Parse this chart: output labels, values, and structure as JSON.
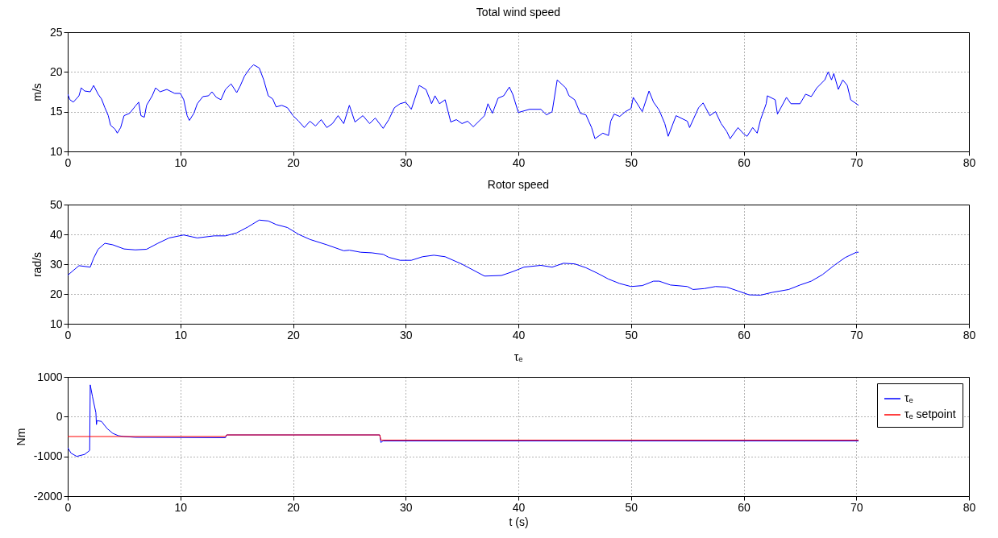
{
  "chart_data": [
    {
      "type": "line",
      "title": "Total wind speed",
      "ylabel": "m/s",
      "xlim": [
        0,
        80
      ],
      "xticks": [
        0,
        10,
        20,
        30,
        40,
        50,
        60,
        70,
        80
      ],
      "ylim": [
        10,
        25
      ],
      "yticks": [
        10,
        15,
        20,
        25
      ],
      "grid": true,
      "series": [
        {
          "color": "#0000ff",
          "x": [
            0,
            0.2,
            0.5,
            1.0,
            1.2,
            1.5,
            2.0,
            2.3,
            2.7,
            3.0,
            3.3,
            3.6,
            3.8,
            4.2,
            4.4,
            4.7,
            5.0,
            5.5,
            6.0,
            6.3,
            6.5,
            6.8,
            7.0,
            7.5,
            7.8,
            8.2,
            8.8,
            9.5,
            10.0,
            10.3,
            10.6,
            10.8,
            11.2,
            11.5,
            12.0,
            12.5,
            12.8,
            13.2,
            13.6,
            14.0,
            14.5,
            15.0,
            15.3,
            15.7,
            16.2,
            16.5,
            17.0,
            17.4,
            17.8,
            18.2,
            18.5,
            19.0,
            19.5,
            20.0,
            20.5,
            21.0,
            21.5,
            22.0,
            22.5,
            23.0,
            23.5,
            24.0,
            24.5,
            25.0,
            25.5,
            26.2,
            26.8,
            27.3,
            28.0,
            28.5,
            29.0,
            29.5,
            30.0,
            30.5,
            31.2,
            31.8,
            32.3,
            32.6,
            33.0,
            33.5,
            34.0,
            34.5,
            35.0,
            35.5,
            36.0,
            36.5,
            37.0,
            37.3,
            37.7,
            38.2,
            38.7,
            39.2,
            39.5,
            40.0,
            41.0,
            42.0,
            42.5,
            43.0,
            43.45,
            44.2,
            44.5,
            45.0,
            45.5,
            46.0,
            46.5,
            46.8,
            47.5,
            48.0,
            48.2,
            48.5,
            49.0,
            49.5,
            50.0,
            50.2,
            51.0,
            51.6,
            52.0,
            52.5,
            53.0,
            53.3,
            54.0,
            55.0,
            55.2,
            56.0,
            56.4,
            57.0,
            57.5,
            58.0,
            58.5,
            58.8,
            59.5,
            60.0,
            60.3,
            60.8,
            61.2,
            61.5,
            62.0,
            62.1,
            62.8,
            63.0,
            63.8,
            64.2,
            65.0,
            65.5,
            66.0,
            66.5,
            67.2,
            67.5,
            67.8,
            68.0,
            68.4,
            68.8,
            69.2,
            69.5,
            70.0,
            70.2
          ],
          "values": [
            17.2,
            16.5,
            16.2,
            17.0,
            18.0,
            17.6,
            17.5,
            18.3,
            17.2,
            16.6,
            15.5,
            14.5,
            13.3,
            12.8,
            12.3,
            13.0,
            14.5,
            14.8,
            15.7,
            16.2,
            14.5,
            14.3,
            15.8,
            17.0,
            18.0,
            17.5,
            17.8,
            17.3,
            17.3,
            16.5,
            14.5,
            13.9,
            14.8,
            16.0,
            16.9,
            17.0,
            17.5,
            16.8,
            16.5,
            17.8,
            18.5,
            17.4,
            18.2,
            19.5,
            20.5,
            20.9,
            20.5,
            19.0,
            17.0,
            16.6,
            15.6,
            15.8,
            15.5,
            14.5,
            13.8,
            13.0,
            13.8,
            13.2,
            14.0,
            13.0,
            13.5,
            14.5,
            13.5,
            15.8,
            13.7,
            14.5,
            13.5,
            14.2,
            12.9,
            14.0,
            15.5,
            16.0,
            16.2,
            15.3,
            18.3,
            17.8,
            16.0,
            17.0,
            16.0,
            16.5,
            13.7,
            14.0,
            13.5,
            13.8,
            13.1,
            13.8,
            14.5,
            16.0,
            14.8,
            16.7,
            17.0,
            18.1,
            17.2,
            14.9,
            15.3,
            15.3,
            14.6,
            15.0,
            19.0,
            18.0,
            17.0,
            16.5,
            14.8,
            14.6,
            13.0,
            11.6,
            12.3,
            12.0,
            13.8,
            14.7,
            14.4,
            15.0,
            15.4,
            16.8,
            15.0,
            17.6,
            16.2,
            15.2,
            13.5,
            11.9,
            14.5,
            13.8,
            13.0,
            15.5,
            16.1,
            14.5,
            15.0,
            13.5,
            12.5,
            11.6,
            13.0,
            12.2,
            11.9,
            13.0,
            12.3,
            14.0,
            16.0,
            17.0,
            16.5,
            14.7,
            16.8,
            16.0,
            16.0,
            17.2,
            16.9,
            18.0,
            19.0,
            20.0,
            19.0,
            19.8,
            17.8,
            19.0,
            18.3,
            16.5,
            16.0,
            15.8
          ]
        }
      ]
    },
    {
      "type": "line",
      "title": "Rotor speed",
      "ylabel": "rad/s",
      "xlim": [
        0,
        80
      ],
      "xticks": [
        0,
        10,
        20,
        30,
        40,
        50,
        60,
        70,
        80
      ],
      "ylim": [
        10,
        50
      ],
      "yticks": [
        10,
        20,
        30,
        40,
        50
      ],
      "grid": true,
      "series": [
        {
          "color": "#0000ff",
          "x": [
            0,
            1,
            2,
            2.3,
            2.7,
            3.3,
            4,
            5,
            6,
            7,
            8,
            9,
            10.3,
            11.5,
            13,
            14,
            15,
            16,
            17,
            17.8,
            18.5,
            19.5,
            20.5,
            21.5,
            23,
            24.5,
            25,
            26,
            27,
            28,
            28.5,
            29.5,
            30.5,
            31.5,
            32.5,
            33.5,
            35,
            37,
            38.5,
            39.5,
            40.5,
            42,
            43,
            44,
            45,
            46,
            47,
            48,
            49,
            50,
            51,
            52,
            52.5,
            53.5,
            55,
            55.5,
            56.5,
            57.5,
            58.5,
            59.5,
            60.5,
            61.5,
            62.5,
            64,
            65,
            66,
            67,
            68,
            69,
            70,
            70.2
          ],
          "values": [
            26.3,
            29.5,
            29,
            32,
            35,
            37,
            36.5,
            35.1,
            34.8,
            35,
            37,
            38.8,
            39.8,
            38.8,
            39.5,
            39.5,
            40.5,
            42.5,
            44.8,
            44.5,
            43.3,
            42.3,
            40,
            38.3,
            36.5,
            34.5,
            34.7,
            34,
            33.8,
            33.3,
            32.3,
            31.3,
            31.3,
            32.5,
            33,
            32.5,
            30,
            26,
            26.2,
            27.5,
            29,
            29.6,
            29,
            30.3,
            30.1,
            28.8,
            27,
            25,
            23.5,
            22.5,
            22.8,
            24.3,
            24.3,
            23,
            22.5,
            21.5,
            21.8,
            22.5,
            22.3,
            21,
            19.7,
            19.6,
            20.5,
            21.5,
            23,
            24.3,
            26.5,
            29.5,
            32.2,
            34,
            34
          ]
        }
      ]
    },
    {
      "type": "line",
      "title": "τₑ",
      "xlabel": "t (s)",
      "ylabel": "Nm",
      "xlim": [
        0,
        80
      ],
      "xticks": [
        0,
        10,
        20,
        30,
        40,
        50,
        60,
        70,
        80
      ],
      "ylim": [
        -2000,
        1000
      ],
      "yticks": [
        -2000,
        -1000,
        0,
        1000
      ],
      "grid": true,
      "legend": "top right",
      "series": [
        {
          "name": "τₑ",
          "color": "#0000ff",
          "x": [
            0,
            0.3,
            0.8,
            1.5,
            1.95,
            2.0,
            2.2,
            2.5,
            2.55,
            2.6,
            3,
            3.5,
            4,
            4.5,
            5,
            6,
            14,
            14.1,
            20,
            27.7,
            27.8,
            28,
            70.2
          ],
          "values": [
            -780,
            -920,
            -1000,
            -950,
            -850,
            800,
            500,
            100,
            -200,
            -100,
            -120,
            -300,
            -420,
            -480,
            -500,
            -520,
            -530,
            -460,
            -460,
            -460,
            -650,
            -610,
            -610
          ]
        },
        {
          "name": "τₑ setpoint",
          "color": "#ff0000",
          "x": [
            0,
            14,
            14.1,
            27.7,
            27.8,
            70.2
          ],
          "values": [
            -500,
            -500,
            -460,
            -460,
            -590,
            -590
          ]
        }
      ]
    }
  ]
}
